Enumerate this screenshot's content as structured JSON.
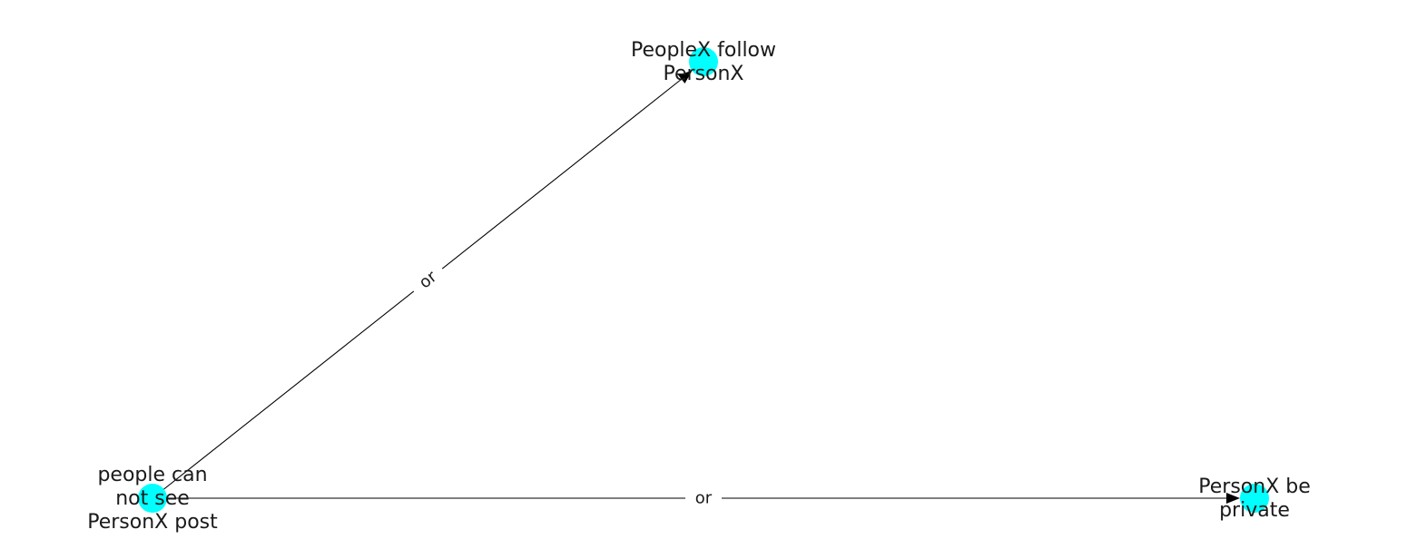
{
  "nodes": [
    {
      "id": "people-cannot-see",
      "label_lines": [
        "people can",
        "not see",
        "PersonX post"
      ],
      "color": "#00ffff"
    },
    {
      "id": "peoplex-follow",
      "label_lines": [
        "PeopleX follow",
        "PersonX"
      ],
      "color": "#00ffff"
    },
    {
      "id": "personx-private",
      "label_lines": [
        "PersonX be",
        "private"
      ],
      "color": "#00ffff"
    }
  ],
  "edges": [
    {
      "from": "people-cannot-see",
      "to": "peoplex-follow",
      "label": "or"
    },
    {
      "from": "people-cannot-see",
      "to": "personx-private",
      "label": "or"
    }
  ]
}
